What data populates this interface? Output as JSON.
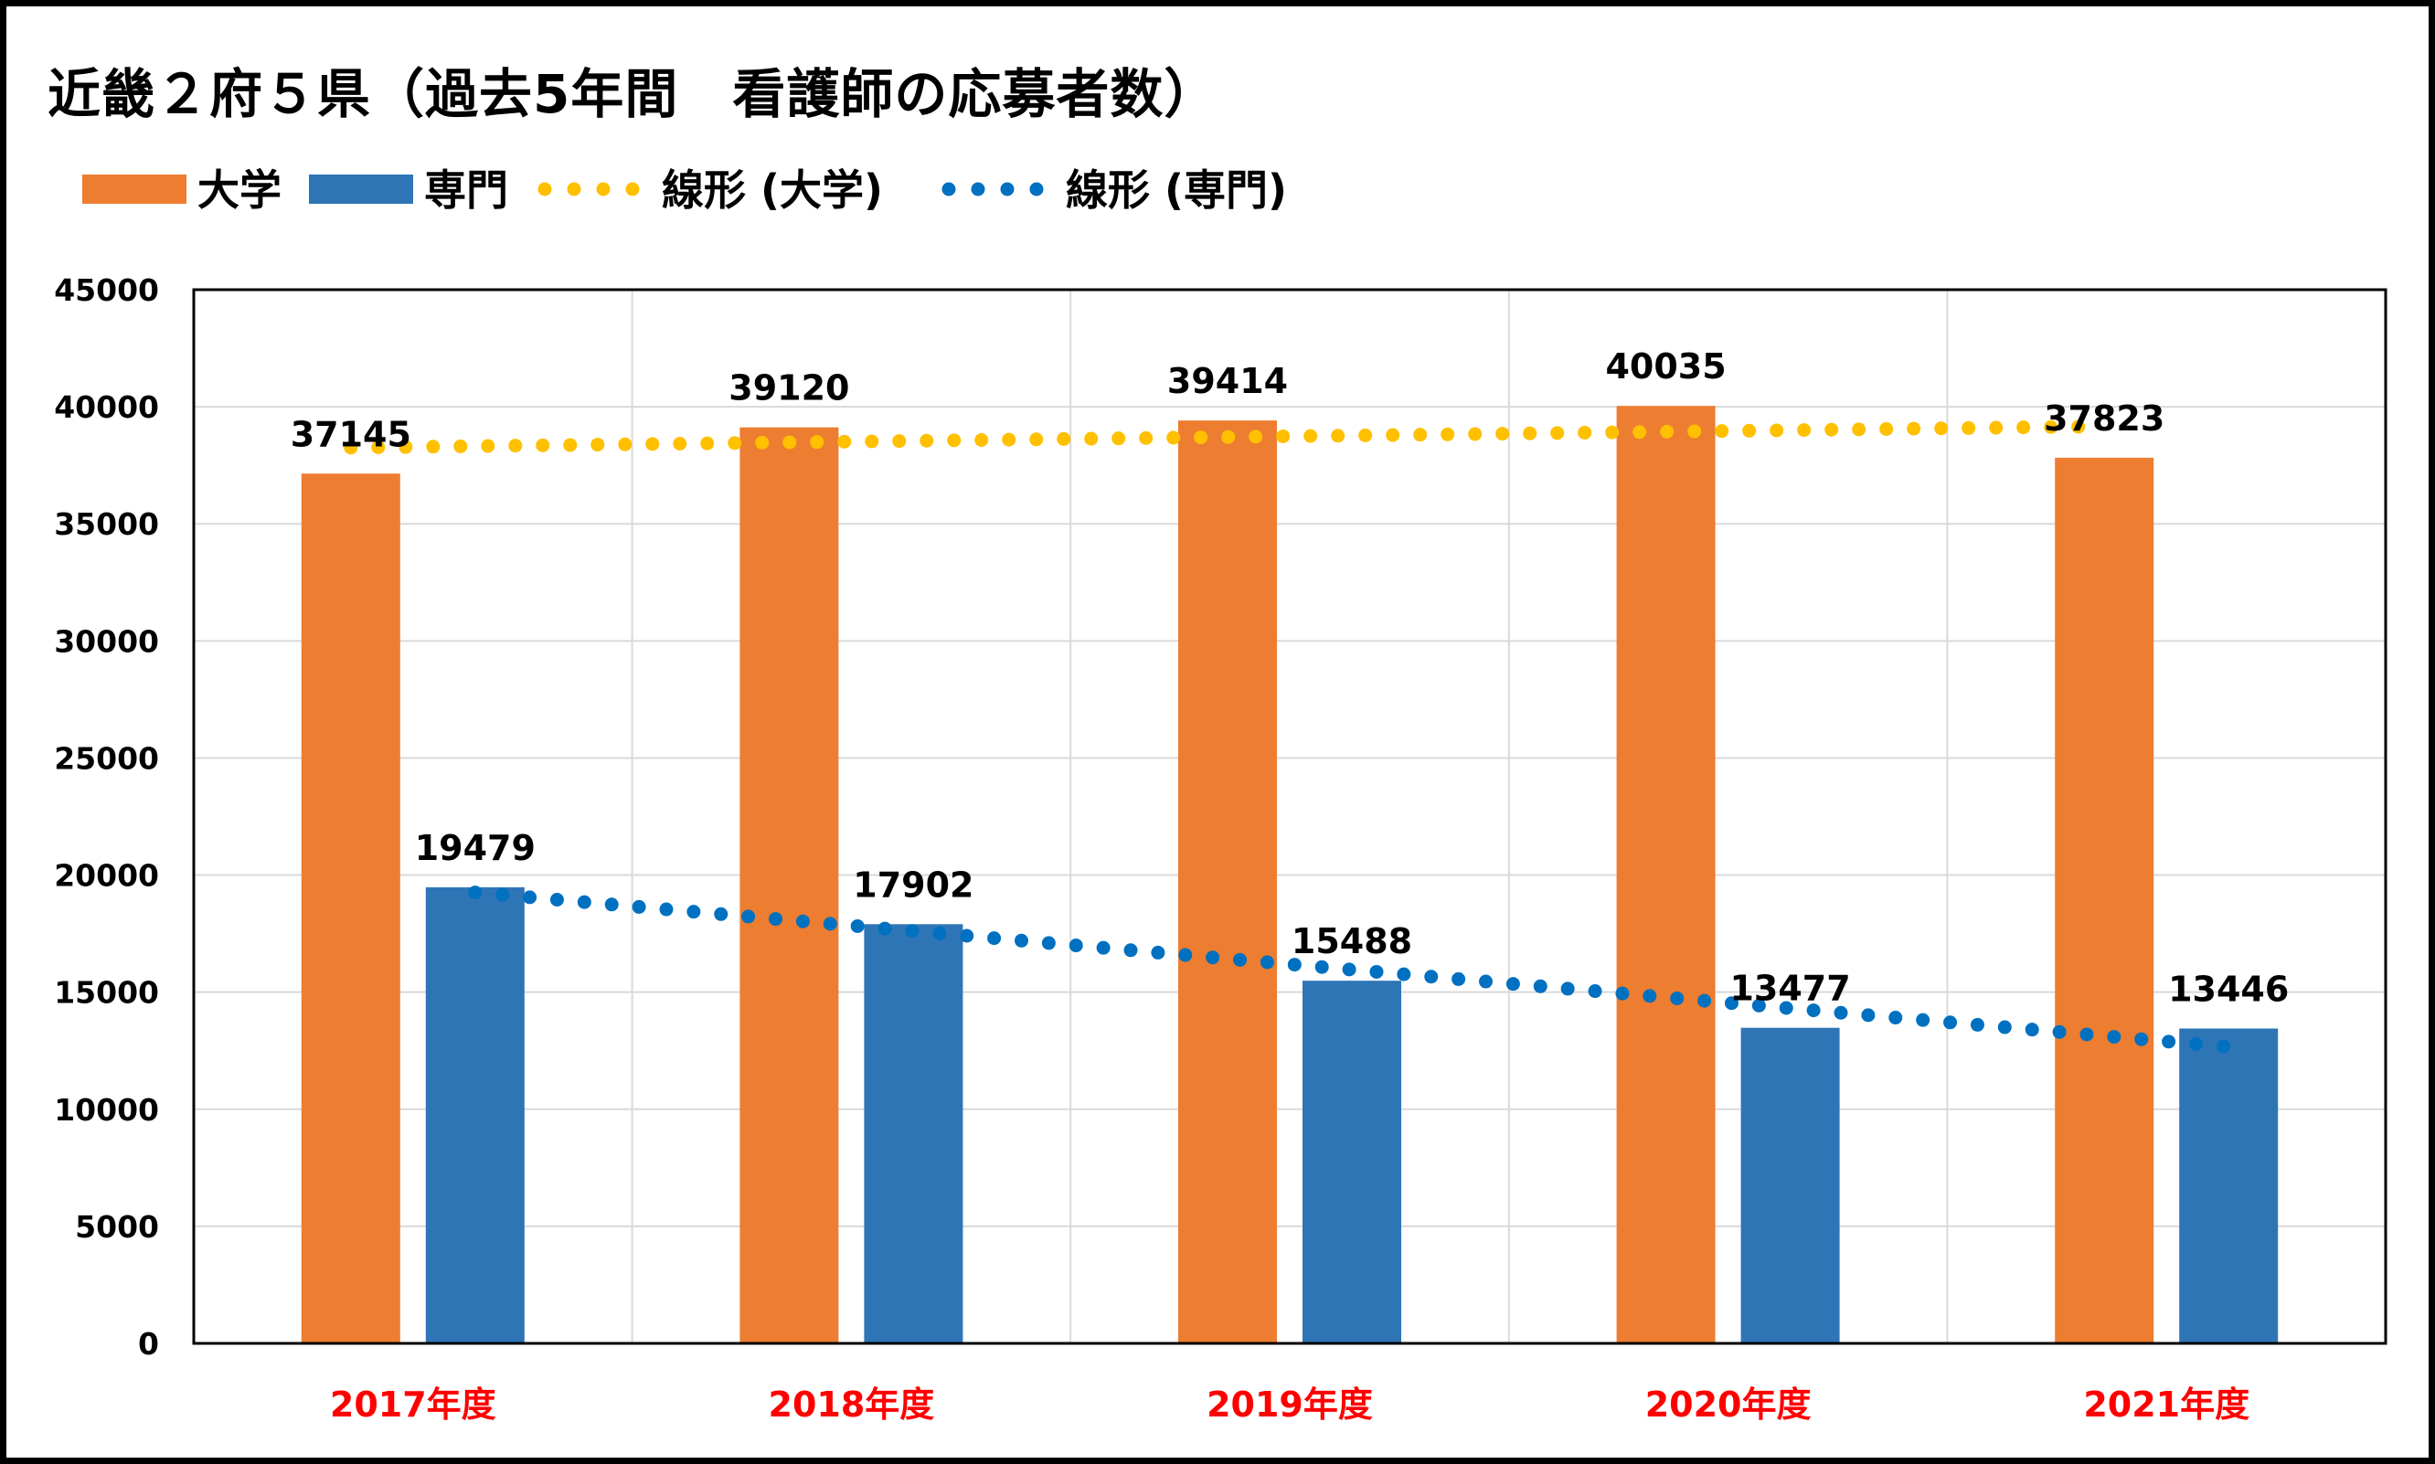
{
  "chart_data": {
    "type": "bar",
    "title": "近畿２府５県（過去5年間　看護師の応募者数）",
    "categories": [
      "2017年度",
      "2018年度",
      "2019年度",
      "2020年度",
      "2021年度"
    ],
    "series": [
      {
        "name": "大学",
        "values": [
          37145,
          39120,
          39414,
          40035,
          37823
        ],
        "color": "#ED7D31"
      },
      {
        "name": "専門",
        "values": [
          19479,
          17902,
          15488,
          13477,
          13446
        ],
        "color": "#2E75B6"
      }
    ],
    "trendlines": [
      {
        "name": "線形 (大学)",
        "of": "大学",
        "type": "linear",
        "color": "#FFC000",
        "style": "dotted"
      },
      {
        "name": "線形 (専門)",
        "of": "専門",
        "type": "linear",
        "color": "#0070C0",
        "style": "dotted"
      }
    ],
    "yticks": [
      "0",
      "5000",
      "10000",
      "15000",
      "20000",
      "25000",
      "30000",
      "35000",
      "40000",
      "45000"
    ],
    "ylim": [
      0,
      45000
    ],
    "grid": true,
    "legend_position": "top-left",
    "category_label_color": "#FF0000"
  }
}
